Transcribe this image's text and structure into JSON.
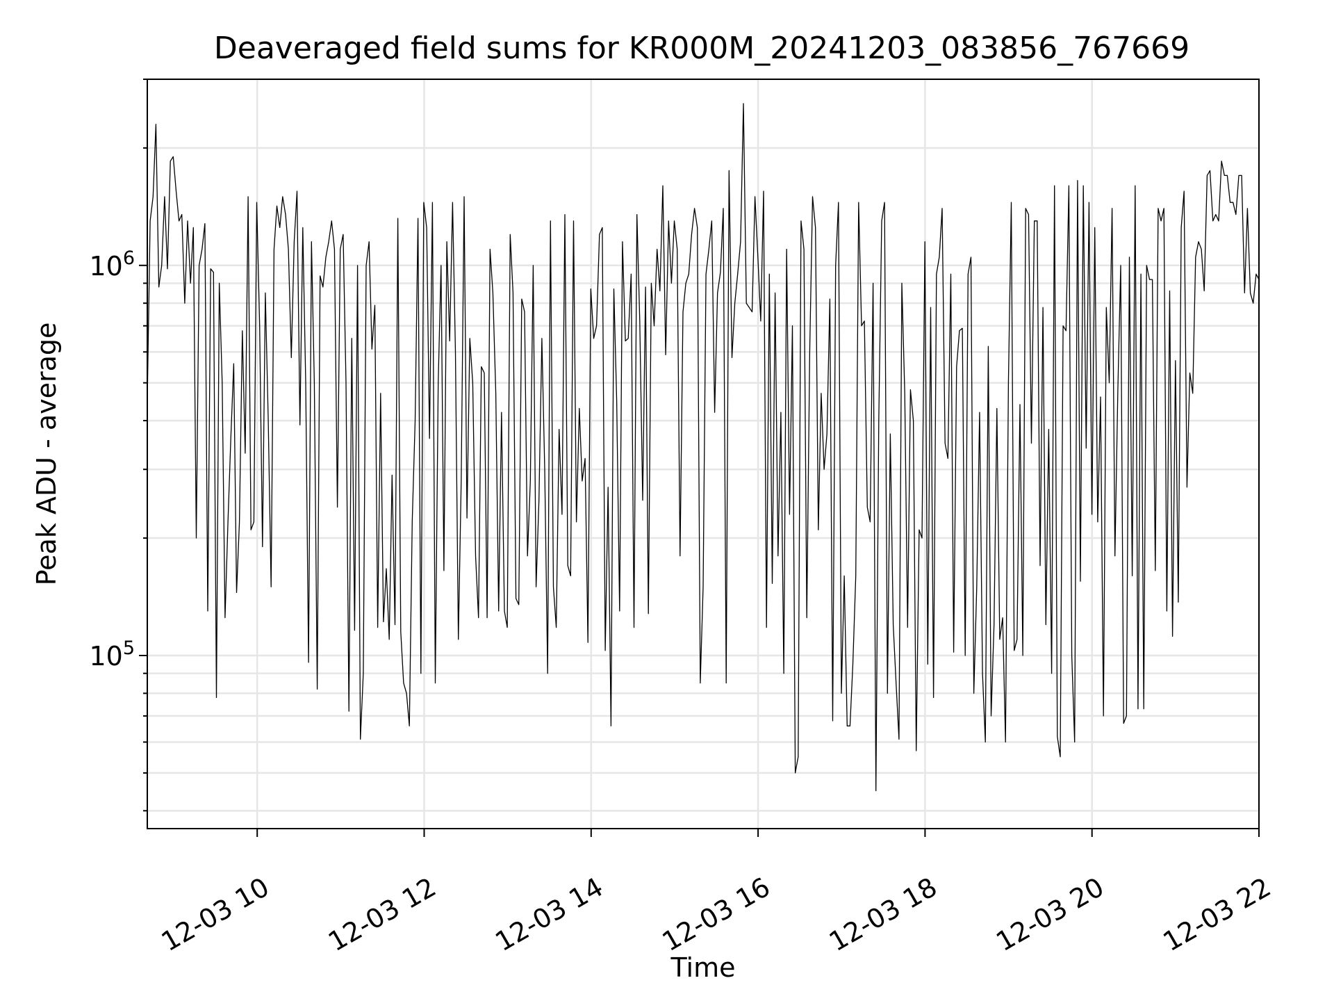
{
  "chart_data": {
    "type": "line",
    "title": "Deaveraged field sums for KR000M_20241203_083856_767669",
    "xlabel": "Time",
    "ylabel": "Peak ADU - average",
    "yscale": "log",
    "grid": true,
    "line_color": "#000000",
    "grid_color": "#e6e6e6",
    "xlim": [
      "2024-12-03 08:41",
      "2024-12-03 22:00"
    ],
    "ylim": [
      36000,
      3000000
    ],
    "x_tick_labels": [
      "12-03 10",
      "12-03 12",
      "12-03 14",
      "12-03 16",
      "12-03 18",
      "12-03 20",
      "12-03 22"
    ],
    "x_ticks": [
      "2024-12-03 10:00",
      "2024-12-03 12:00",
      "2024-12-03 14:00",
      "2024-12-03 16:00",
      "2024-12-03 18:00",
      "2024-12-03 20:00",
      "2024-12-03 22:00"
    ],
    "y_major_ticks": [
      {
        "value": 100000,
        "base": "10",
        "exp": "5"
      },
      {
        "value": 1000000,
        "base": "10",
        "exp": "6"
      }
    ],
    "series": [
      {
        "x_start": "2024-12-03 08:41",
        "x_end": "2024-12-03 22:00",
        "values": [
          450000,
          1300000,
          1500000,
          2300000,
          880000,
          1000000,
          1500000,
          980000,
          1850000,
          1900000,
          1550000,
          1300000,
          1350000,
          800000,
          1300000,
          900000,
          1250000,
          200000,
          1000000,
          1100000,
          1280000,
          130000,
          980000,
          960000,
          78000,
          900000,
          500000,
          125000,
          220000,
          360000,
          560000,
          145000,
          220000,
          680000,
          330000,
          1500000,
          210000,
          220000,
          1450000,
          700000,
          190000,
          850000,
          400000,
          150000,
          1100000,
          1420000,
          1250000,
          1500000,
          1350000,
          1100000,
          580000,
          1150000,
          1550000,
          390000,
          1250000,
          500000,
          96000,
          1150000,
          500000,
          82000,
          940000,
          880000,
          1050000,
          1150000,
          1300000,
          1100000,
          240000,
          1100000,
          1200000,
          500000,
          72000,
          650000,
          116000,
          1000000,
          61000,
          90000,
          1000000,
          1150000,
          610000,
          790000,
          118000,
          470000,
          122000,
          167000,
          110000,
          290000,
          120000,
          1320000,
          115000,
          85000,
          80000,
          66000,
          220000,
          400000,
          1320000,
          90000,
          1450000,
          1250000,
          360000,
          1450000,
          85000,
          500000,
          1000000,
          165000,
          1150000,
          640000,
          1450000,
          600000,
          110000,
          280000,
          1500000,
          225000,
          650000,
          500000,
          180000,
          125000,
          550000,
          530000,
          125000,
          1100000,
          850000,
          470000,
          130000,
          420000,
          130000,
          118000,
          1200000,
          850000,
          140000,
          135000,
          820000,
          760000,
          180000,
          280000,
          1000000,
          150000,
          250000,
          650000,
          300000,
          90000,
          1300000,
          150000,
          118000,
          380000,
          230000,
          1350000,
          170000,
          160000,
          1300000,
          220000,
          430000,
          280000,
          320000,
          108000,
          870000,
          650000,
          700000,
          1200000,
          1250000,
          103000,
          270000,
          66000,
          870000,
          450000,
          130000,
          1150000,
          640000,
          650000,
          950000,
          118000,
          1350000,
          720000,
          250000,
          880000,
          128000,
          900000,
          700000,
          1100000,
          860000,
          1600000,
          590000,
          1300000,
          900000,
          1300000,
          1100000,
          180000,
          760000,
          900000,
          950000,
          1200000,
          1400000,
          1250000,
          85000,
          150000,
          950000,
          1100000,
          1300000,
          420000,
          850000,
          960000,
          1400000,
          85000,
          1750000,
          580000,
          800000,
          950000,
          1150000,
          2600000,
          800000,
          780000,
          760000,
          1500000,
          1050000,
          720000,
          1550000,
          118000,
          950000,
          153000,
          850000,
          180000,
          420000,
          90000,
          1100000,
          230000,
          700000,
          50000,
          55000,
          1300000,
          1100000,
          125000,
          600000,
          1500000,
          1250000,
          210000,
          470000,
          300000,
          370000,
          820000,
          68000,
          1000000,
          1450000,
          80000,
          160000,
          66000,
          66000,
          95000,
          160000,
          1450000,
          700000,
          720000,
          240000,
          220000,
          900000,
          45000,
          400000,
          1300000,
          1450000,
          80000,
          370000,
          120000,
          85000,
          61000,
          900000,
          470000,
          118000,
          480000,
          400000,
          57000,
          210000,
          200000,
          1150000,
          95000,
          780000,
          78000,
          950000,
          1050000,
          1400000,
          350000,
          320000,
          950000,
          102000,
          550000,
          680000,
          690000,
          100000,
          950000,
          1050000,
          80000,
          150000,
          420000,
          90000,
          60000,
          620000,
          70000,
          120000,
          430000,
          110000,
          125000,
          60000,
          500000,
          1450000,
          103000,
          110000,
          440000,
          100000,
          1400000,
          1350000,
          350000,
          1300000,
          1300000,
          170000,
          780000,
          120000,
          380000,
          90000,
          1600000,
          62000,
          55000,
          700000,
          680000,
          1600000,
          100000,
          60000,
          1650000,
          155000,
          1600000,
          340000,
          1450000,
          230000,
          1250000,
          220000,
          460000,
          70000,
          780000,
          500000,
          1400000,
          180000,
          480000,
          1000000,
          67000,
          70000,
          1050000,
          160000,
          1600000,
          73000,
          950000,
          73000,
          1000000,
          920000,
          920000,
          165000,
          1400000,
          1300000,
          1400000,
          130000,
          860000,
          112000,
          570000,
          137000,
          1250000,
          1550000,
          270000,
          530000,
          470000,
          1050000,
          1150000,
          1100000,
          860000,
          1700000,
          1750000,
          1300000,
          1350000,
          1300000,
          1850000,
          1700000,
          1700000,
          1450000,
          1450000,
          1350000,
          1700000,
          1700000,
          850000,
          1400000,
          850000,
          800000,
          950000,
          920000
        ]
      }
    ]
  }
}
